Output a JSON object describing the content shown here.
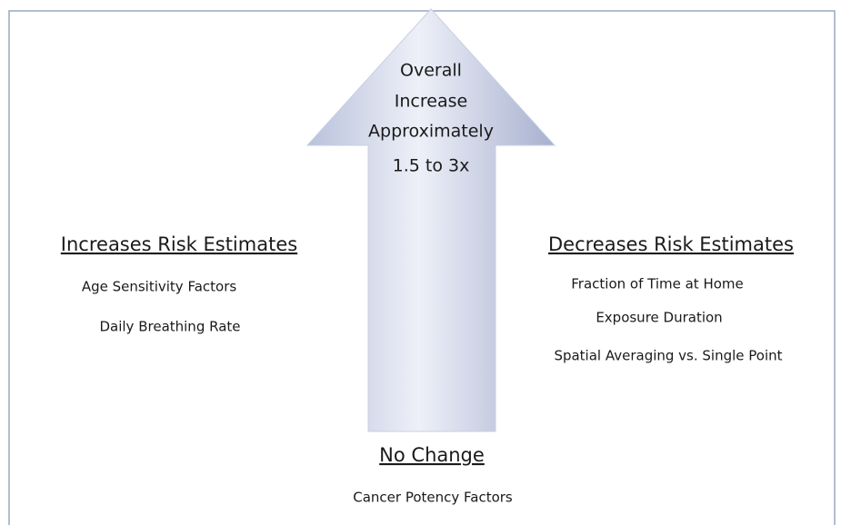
{
  "arrow": {
    "label": [
      "Overall",
      "Increase",
      "Approximately",
      "1.5 to 3x"
    ]
  },
  "left": {
    "heading": "Increases Risk Estimates",
    "items": [
      "Age Sensitivity Factors",
      "Daily Breathing Rate"
    ]
  },
  "right": {
    "heading": "Decreases Risk Estimates",
    "items": [
      "Fraction of Time at Home",
      "Exposure Duration",
      "Spatial Averaging vs. Single Point"
    ]
  },
  "bottom": {
    "heading": "No Change",
    "items": [
      "Cancer Potency Factors"
    ]
  }
}
